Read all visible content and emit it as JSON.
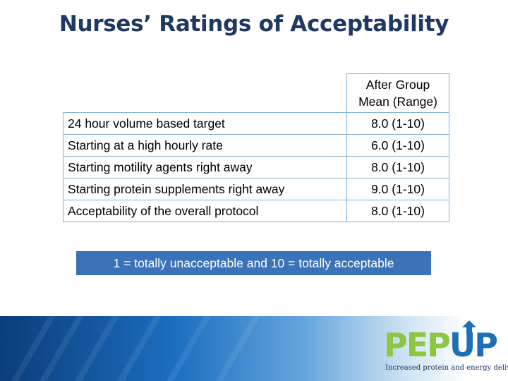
{
  "title": "Nurses’ Ratings of Acceptability",
  "table": {
    "header": "After Group Mean (Range)",
    "header_line1": "After Group",
    "header_line2": "Mean (Range)",
    "rows": [
      {
        "label": "24 hour volume based target",
        "value": "8.0 (1-10)"
      },
      {
        "label": "Starting at a high hourly rate",
        "value": "6.0 (1-10)"
      },
      {
        "label": "Starting motility agents right away",
        "value": "8.0 (1-10)"
      },
      {
        "label": "Starting protein supplements right away",
        "value": "9.0 (1-10)"
      },
      {
        "label": "Acceptability of the overall protocol",
        "value": "8.0 (1-10)"
      }
    ]
  },
  "legend": "1 = totally unacceptable and 10 = totally acceptable",
  "logo": {
    "pep": "PEP",
    "up": "UP",
    "tagline": "Increased protein and energy delivery"
  },
  "colors": {
    "title": "#1f3864",
    "table_border": "#7fb1d6",
    "legend_bg": "#3a73b8",
    "logo_green": "#8dc63f",
    "logo_blue": "#1f6fb5"
  }
}
